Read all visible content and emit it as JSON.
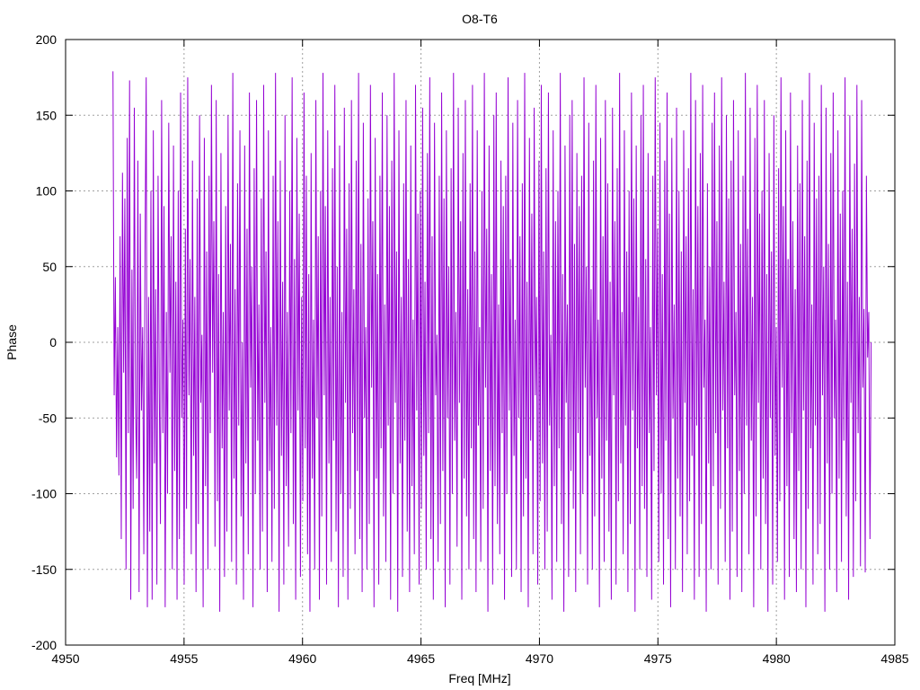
{
  "chart_data": {
    "type": "line",
    "title": "O8-T6",
    "xlabel": "Freq [MHz]",
    "ylabel": "Phase",
    "xlim": [
      4950,
      4985
    ],
    "ylim": [
      -200,
      200
    ],
    "x_ticks": [
      "4950",
      "4955",
      "4960",
      "4965",
      "4970",
      "4975",
      "4980",
      "4985"
    ],
    "y_ticks": [
      "-200",
      "-150",
      "-100",
      "-50",
      "0",
      "50",
      "100",
      "150",
      "200"
    ],
    "grid": true,
    "line_color": "#9400d3",
    "series": [
      {
        "x_start": 4952.0,
        "x_end": 4984.0,
        "sample_count": 640,
        "description_values_approx": "phase wraps rapidly between about -180 and 180 degrees across the band",
        "values": [
          179,
          -35,
          43,
          -76,
          10,
          -88,
          70,
          -130,
          112,
          -20,
          95,
          -150,
          135,
          -60,
          173,
          -170,
          48,
          -110,
          155,
          -40,
          -90,
          120,
          -165,
          85,
          -45,
          10,
          -140,
          60,
          175,
          -175,
          30,
          -125,
          100,
          -170,
          140,
          -80,
          35,
          -160,
          110,
          -30,
          -120,
          160,
          -60,
          90,
          -175,
          20,
          -100,
          145,
          -20,
          70,
          -150,
          130,
          -85,
          40,
          -170,
          100,
          -130,
          165,
          -50,
          15,
          -160,
          75,
          -110,
          175,
          -35,
          55,
          -140,
          120,
          -75,
          30,
          -165,
          95,
          -120,
          150,
          -40,
          5,
          -175,
          135,
          -95,
          60,
          -150,
          110,
          -60,
          170,
          -20,
          80,
          -135,
          160,
          -105,
          45,
          -178,
          125,
          -70,
          20,
          -155,
          90,
          -125,
          150,
          -45,
          65,
          -145,
          178,
          -90,
          35,
          -160,
          105,
          -55,
          140,
          -115,
          0,
          -170,
          130,
          -80,
          75,
          -140,
          165,
          -30,
          50,
          -175,
          115,
          -100,
          160,
          -65,
          25,
          -150,
          95,
          -125,
          170,
          -40,
          60,
          -165,
          140,
          -85,
          10,
          -145,
          110,
          -110,
          178,
          -55,
          80,
          -178,
          120,
          -75,
          40,
          -160,
          150,
          -95,
          20,
          -135,
          100,
          -60,
          175,
          -120,
          55,
          -170,
          135,
          -45,
          85,
          -155,
          30,
          -105,
          165,
          -70,
          110,
          -140,
          45,
          -178,
          125,
          -90,
          15,
          -150,
          160,
          -50,
          70,
          -170,
          100,
          -115,
          178,
          -35,
          90,
          -160,
          140,
          -80,
          30,
          -145,
          115,
          -65,
          170,
          -125,
          50,
          -175,
          130,
          -100,
          20,
          -155,
          155,
          -40,
          75,
          -170,
          105,
          -110,
          160,
          -60,
          35,
          -140,
          120,
          -85,
          178,
          -130,
          65,
          -165,
          145,
          -50,
          10,
          -150,
          95,
          -120,
          170,
          -30,
          80,
          -175,
          135,
          -90,
          45,
          -160,
          110,
          -70,
          165,
          -115,
          25,
          -145,
          150,
          -55,
          90,
          -170,
          120,
          -100,
          178,
          -40,
          60,
          -178,
          140,
          -80,
          30,
          -155,
          105,
          -65,
          160,
          -125,
          55,
          -165,
          130,
          -95,
          15,
          -140,
          170,
          -45,
          85,
          -160,
          100,
          -110,
          155,
          -75,
          40,
          -150,
          125,
          -60,
          175,
          -130,
          70,
          -170,
          145,
          -35,
          5,
          -145,
          110,
          -120,
          165,
          -85,
          95,
          -175,
          140,
          -50,
          50,
          -160,
          115,
          -100,
          178,
          -65,
          20,
          -135,
          155,
          -40,
          80,
          -170,
          125,
          -90,
          160,
          -115,
          35,
          -150,
          105,
          -70,
          170,
          -130,
          60,
          -165,
          140,
          -55,
          10,
          -145,
          100,
          -110,
          178,
          -30,
          75,
          -178,
          130,
          -85,
          45,
          -160,
          150,
          -95,
          165,
          -120,
          25,
          -140,
          120,
          -60,
          90,
          -170,
          110,
          -100,
          175,
          -45,
          55,
          -155,
          145,
          -75,
          15,
          -150,
          160,
          -50,
          70,
          -165,
          105,
          -115,
          178,
          -90,
          40,
          -175,
          135,
          -65,
          85,
          -140,
          155,
          -35,
          30,
          -160,
          120,
          -105,
          170,
          -80,
          60,
          -150,
          115,
          -125,
          165,
          -55,
          5,
          -170,
          140,
          -95,
          80,
          -145,
          100,
          -70,
          178,
          -120,
          45,
          -178,
          130,
          -40,
          25,
          -155,
          150,
          -85,
          160,
          -110,
          65,
          -165,
          125,
          -60,
          90,
          -140,
          110,
          -100,
          175,
          -30,
          50,
          -160,
          145,
          -75,
          35,
          -150,
          120,
          -115,
          170,
          -50,
          15,
          -175,
          135,
          -90,
          70,
          -145,
          160,
          -65,
          105,
          -125,
          40,
          -170,
          155,
          -35,
          80,
          -160,
          115,
          -105,
          178,
          -80,
          20,
          -140,
          140,
          -55,
          60,
          -165,
          100,
          -120,
          165,
          -45,
          95,
          -178,
          130,
          -70,
          30,
          -150,
          150,
          -95,
          170,
          -110,
          55,
          -155,
          125,
          -60,
          10,
          -170,
          110,
          -85,
          175,
          -35,
          75,
          -145,
          145,
          -100,
          45,
          -160,
          120,
          -65,
          165,
          -130,
          85,
          -175,
          135,
          -50,
          25,
          -150,
          155,
          -90,
          100,
          -115,
          60,
          -165,
          140,
          -40,
          70,
          -140,
          115,
          -105,
          178,
          -75,
          35,
          -170,
          160,
          -55,
          90,
          -155,
          125,
          -120,
          170,
          -30,
          15,
          -178,
          105,
          -80,
          50,
          -150,
          145,
          -95,
          165,
          -60,
          80,
          -160,
          130,
          -110,
          175,
          -45,
          40,
          -145,
          150,
          -70,
          95,
          -170,
          120,
          -125,
          160,
          -35,
          20,
          -155,
          140,
          -85,
          65,
          -165,
          110,
          -100,
          178,
          -55,
          75,
          -140,
          155,
          -65,
          30,
          -175,
          135,
          -115,
          170,
          -40,
          85,
          -150,
          100,
          -90,
          160,
          -120,
          45,
          -178,
          125,
          -50,
          60,
          -160,
          150,
          -75,
          10,
          -145,
          115,
          -105,
          175,
          -30,
          90,
          -170,
          140,
          -95,
          55,
          -155,
          165,
          -60,
          80,
          -130,
          35,
          -165,
          130,
          -85,
          105,
          -150,
          160,
          -45,
          70,
          -175,
          120,
          -110,
          178,
          -70,
          25,
          -160,
          145,
          -55,
          95,
          -140,
          110,
          -120,
          170,
          -35,
          50,
          -178,
          155,
          -80,
          65,
          -150,
          125,
          -100,
          165,
          -50,
          15,
          -165,
          140,
          -90,
          85,
          -145,
          100,
          -65,
          175,
          -115,
          40,
          -170,
          150,
          -40,
          75,
          -155,
          118,
          -105,
          170,
          -60,
          30,
          -148,
          160,
          -30,
          22,
          -152,
          110,
          -10,
          20,
          -130,
          0
        ]
      }
    ]
  }
}
